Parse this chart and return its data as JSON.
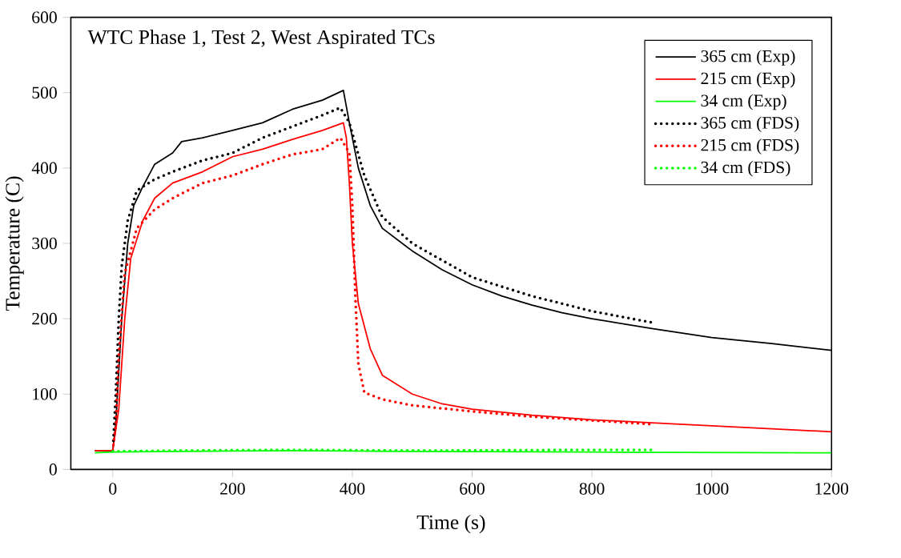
{
  "chart_data": {
    "type": "line",
    "title": "WTC Phase 1, Test 2, West Aspirated TCs",
    "xlabel": "Time (s)",
    "ylabel": "Temperature (C)",
    "xlim": [
      -70,
      1200
    ],
    "ylim": [
      0,
      600
    ],
    "xticks": [
      0,
      200,
      400,
      600,
      800,
      1000,
      1200
    ],
    "yticks": [
      0,
      100,
      200,
      300,
      400,
      500,
      600
    ],
    "grid": false,
    "legend": "top right",
    "marker": "none",
    "series": [
      {
        "name": "365 cm (Exp)",
        "color": "#000000",
        "line_style": "solid",
        "x": [
          -30,
          0,
          5,
          15,
          25,
          35,
          50,
          70,
          100,
          115,
          150,
          200,
          250,
          300,
          350,
          385,
          395,
          410,
          430,
          450,
          500,
          550,
          600,
          650,
          700,
          750,
          800,
          900,
          1000,
          1100,
          1200
        ],
        "values": [
          25,
          25,
          60,
          200,
          300,
          350,
          375,
          405,
          420,
          435,
          440,
          450,
          460,
          478,
          490,
          503,
          460,
          400,
          350,
          320,
          290,
          265,
          245,
          230,
          218,
          208,
          200,
          187,
          175,
          167,
          158
        ]
      },
      {
        "name": "215 cm (Exp)",
        "color": "#ff0000",
        "line_style": "solid",
        "x": [
          -30,
          0,
          10,
          20,
          30,
          50,
          70,
          100,
          150,
          200,
          250,
          300,
          350,
          385,
          390,
          395,
          400,
          410,
          430,
          450,
          500,
          550,
          600,
          700,
          800,
          900,
          1000,
          1100,
          1200
        ],
        "values": [
          25,
          25,
          80,
          200,
          280,
          330,
          360,
          380,
          395,
          415,
          425,
          438,
          450,
          460,
          440,
          380,
          300,
          220,
          160,
          125,
          100,
          87,
          80,
          72,
          66,
          62,
          58,
          54,
          50
        ]
      },
      {
        "name": "34 cm (Exp)",
        "color": "#00ff00",
        "line_style": "solid",
        "x": [
          -30,
          0,
          100,
          300,
          500,
          800,
          1200
        ],
        "values": [
          22,
          23,
          24,
          25,
          24,
          23,
          22
        ]
      },
      {
        "name": "365 cm (FDS)",
        "color": "#000000",
        "line_style": "dotted",
        "x": [
          1,
          5,
          10,
          15,
          25,
          40,
          70,
          100,
          150,
          200,
          250,
          300,
          350,
          380,
          395,
          420,
          450,
          500,
          600,
          700,
          800,
          900
        ],
        "values": [
          38,
          100,
          200,
          270,
          330,
          370,
          385,
          395,
          410,
          420,
          440,
          455,
          470,
          480,
          460,
          390,
          335,
          300,
          255,
          230,
          210,
          195
        ]
      },
      {
        "name": "215 cm (FDS)",
        "color": "#ff0000",
        "line_style": "dotted",
        "x": [
          0,
          5,
          10,
          20,
          40,
          70,
          100,
          150,
          200,
          250,
          300,
          350,
          380,
          395,
          400,
          405,
          410,
          420,
          450,
          500,
          600,
          700,
          800,
          900
        ],
        "values": [
          25,
          60,
          150,
          260,
          320,
          345,
          360,
          380,
          390,
          405,
          418,
          425,
          440,
          420,
          350,
          230,
          140,
          102,
          93,
          85,
          77,
          70,
          65,
          60
        ]
      },
      {
        "name": "34 cm (FDS)",
        "color": "#00ff00",
        "line_style": "dotted",
        "x": [
          0,
          100,
          300,
          500,
          800,
          900
        ],
        "values": [
          24,
          25,
          26,
          25,
          26,
          26
        ]
      }
    ]
  }
}
